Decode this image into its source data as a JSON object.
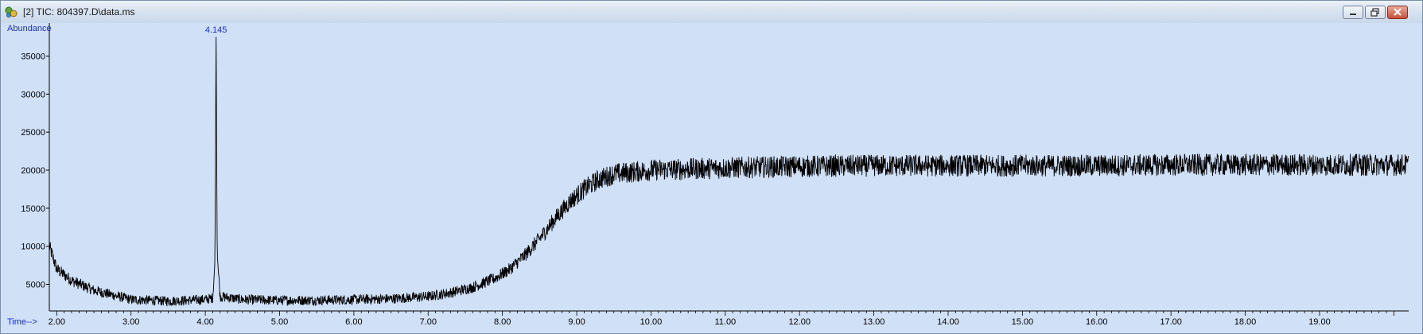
{
  "window": {
    "title": "[2] TIC: 804397.D\\data.ms",
    "icon": "chromatogram-app-icon"
  },
  "chart_data": {
    "type": "line",
    "title": "",
    "ylabel": "Abundance",
    "xlabel": "Time-->",
    "xlim": [
      1.9,
      20.2
    ],
    "ylim": [
      1500,
      38500
    ],
    "x_ticks": [
      2,
      3,
      4,
      5,
      6,
      7,
      8,
      9,
      10,
      11,
      12,
      13,
      14,
      15,
      16,
      17,
      18,
      19
    ],
    "x_tick_labels": [
      "2.00",
      "3.00",
      "4.00",
      "5.00",
      "6.00",
      "7.00",
      "8.00",
      "9.00",
      "10.00",
      "11.00",
      "12.00",
      "13.00",
      "14.00",
      "15.00",
      "16.00",
      "17.00",
      "18.00",
      "19.00"
    ],
    "y_ticks": [
      5000,
      10000,
      15000,
      20000,
      25000,
      30000,
      35000
    ],
    "y_tick_labels": [
      "5000",
      "10000",
      "15000",
      "20000",
      "25000",
      "30000",
      "35000"
    ],
    "grid": false,
    "peak_annotation": {
      "label": "4.145",
      "x": 4.145,
      "y": 38500
    },
    "series": [
      {
        "color": "#000000",
        "x": [
          1.9,
          2.0,
          2.2,
          2.5,
          3.0,
          3.5,
          4.0,
          4.1,
          4.13,
          4.145,
          4.16,
          4.2,
          4.5,
          5.0,
          5.5,
          6.0,
          6.5,
          7.0,
          7.3,
          7.6,
          7.9,
          8.1,
          8.3,
          8.5,
          8.7,
          8.9,
          9.1,
          9.3,
          9.5,
          10.0,
          11.0,
          12.0,
          13.0,
          14.0,
          15.0,
          16.0,
          17.0,
          18.0,
          19.0,
          20.2
        ],
        "y": [
          10000,
          7000,
          5500,
          4200,
          3000,
          2800,
          3000,
          3200,
          8000,
          38500,
          9000,
          3400,
          3000,
          2900,
          2900,
          3000,
          3100,
          3400,
          3900,
          4600,
          5800,
          7000,
          8800,
          11000,
          13500,
          15800,
          17500,
          18800,
          19500,
          20000,
          20300,
          20500,
          20600,
          20600,
          20600,
          20600,
          20700,
          20700,
          20700,
          20700
        ]
      }
    ]
  }
}
